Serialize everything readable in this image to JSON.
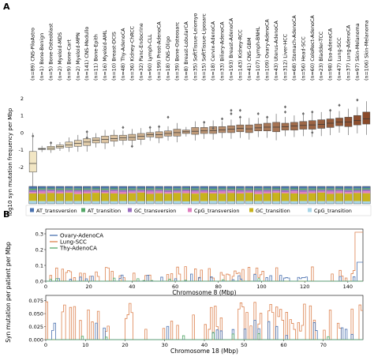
{
  "panel_labels": {
    "a": "A",
    "b": "B"
  },
  "colors": {
    "box_light": "#f2e6c4",
    "box_dark": "#8a4a2a",
    "AT_transversion": "#4a72b0",
    "AT_transition": "#55a868",
    "GC_transversion": "#9b6fc2",
    "CpG_transversion": "#e07fc0",
    "GC_transition": "#c8b31c",
    "CpG_transition": "#a9d6e8",
    "ovary": "#4c72b0",
    "lung": "#dd8452",
    "thy": "#55a868"
  },
  "chart_data": [
    {
      "type": "box",
      "ylabel": "log10 syn mutation frequency per Mbp",
      "ylim": [
        -2.4,
        2.3
      ],
      "yticks": [
        "-2",
        "-1",
        "0",
        "1",
        "2"
      ],
      "categories": [
        "(n=89) CNS-PiloAstro",
        "(n=1) Bone-Benign",
        "(n=5) Bone-Osteoblast",
        "(n=2) Myeloid-MDS",
        "(n=9) Bone-Cart",
        "(n=2) Myeloid-MPN",
        "(n=141) CNS-Medullo",
        "(n=11) Bone-Epith",
        "(n=16) Myeloid-AML",
        "(n=10) Breast-DCIS",
        "(n=48) Thy-AdenoCA",
        "(n=36) Kidney-ChRCC",
        "(n=32) Panc-Endocrine",
        "(n=90) Lymph-CLL",
        "(n=199) Prost-AdenoCA",
        "(n=18) CNS-Oligo",
        "(n=39) Bone-Osteosarc",
        "(n=8) Breast-LobularCA",
        "(n=35) SoftTissue-Leiomyo",
        "(n=15) SoftTissue-Liposarc",
        "(n=18) Cervix-AdenoCA",
        "(n=33) Biliary-AdenoCA",
        "(n=193) Breast-AdenoCA",
        "(n=143) Kidney-RCC",
        "(n=41) CNS-GBM",
        "(n=107) Lymph-BNHL",
        "(n=109) Ovary-AdenoCA",
        "(n=43) Uterus-AdenoCA",
        "(n=312) Liver-HCC",
        "(n=68) Stomach-AdenoCA",
        "(n=56) Head-SCC",
        "(n=60) ColoRect-AdenoCA",
        "(n=23) Bladder-TCC",
        "(n=98) Eso-AdenoCA",
        "(n=47) Lung-SCC",
        "(n=37) Lung-AdenoCA",
        "(n=97) Skin-Melanoma",
        "(n=106) Skin-Melanoma"
      ],
      "medians": [
        -1.8,
        -0.95,
        -0.9,
        -0.82,
        -0.72,
        -0.62,
        -0.55,
        -0.45,
        -0.4,
        -0.35,
        -0.3,
        -0.28,
        -0.22,
        -0.12,
        -0.12,
        -0.05,
        0.0,
        0.05,
        0.08,
        0.1,
        0.12,
        0.15,
        0.2,
        0.25,
        0.22,
        0.28,
        0.32,
        0.32,
        0.35,
        0.38,
        0.42,
        0.45,
        0.48,
        0.55,
        0.62,
        0.62,
        0.7,
        0.8
      ],
      "q1": [
        -2.3,
        -0.98,
        -1.0,
        -0.9,
        -0.85,
        -0.8,
        -0.75,
        -0.6,
        -0.6,
        -0.5,
        -0.45,
        -0.45,
        -0.4,
        -0.25,
        -0.3,
        -0.2,
        -0.2,
        -0.05,
        -0.1,
        -0.05,
        -0.05,
        0.0,
        0.0,
        0.05,
        0.0,
        0.1,
        0.1,
        0.05,
        0.15,
        0.15,
        0.2,
        0.2,
        0.25,
        0.3,
        0.4,
        0.35,
        0.45,
        0.5
      ],
      "q3": [
        -1.1,
        -0.92,
        -0.8,
        -0.72,
        -0.55,
        -0.45,
        -0.35,
        -0.3,
        -0.2,
        -0.15,
        -0.15,
        -0.1,
        -0.05,
        0.0,
        0.05,
        0.1,
        0.2,
        0.15,
        0.3,
        0.3,
        0.35,
        0.35,
        0.4,
        0.45,
        0.45,
        0.5,
        0.55,
        0.6,
        0.55,
        0.6,
        0.65,
        0.7,
        0.75,
        0.8,
        0.85,
        0.9,
        1.0,
        1.2
      ],
      "outliers": [
        [
          -0.2
        ],
        [],
        [
          -0.6
        ],
        [],
        [],
        [],
        [
          -0.3,
          0.05
        ],
        [],
        [],
        [],
        [
          0.3
        ],
        [
          -0.8
        ],
        [],
        [
          0.3
        ],
        [
          0.35
        ],
        [
          0.9
        ],
        [],
        [],
        [],
        [
          0.6
        ],
        [
          0.25
        ],
        [
          0.8
        ],
        [
          1.1,
          1.3
        ],
        [
          1.3,
          0.9
        ],
        [],
        [
          1.1
        ],
        [
          0.9
        ],
        [],
        [
          1.5,
          1.2
        ],
        [],
        [
          1.1
        ],
        [
          1.2,
          0.0
        ],
        [],
        [
          1.3
        ],
        [
          1.6
        ],
        [],
        [
          1.9
        ],
        []
      ],
      "legend": [
        "AT_transversion",
        "AT_transition",
        "GC_transversion",
        "CpG_transversion",
        "GC_transition",
        "CpG_transition"
      ]
    },
    {
      "type": "line",
      "xlabel": "Chromosome 8 (Mbp)",
      "xlim": [
        0,
        147
      ],
      "xticks": [
        "0",
        "20",
        "40",
        "60",
        "80",
        "100",
        "120",
        "140"
      ],
      "ylim": [
        0,
        0.33
      ],
      "yticks": [
        "0.0",
        "0.1",
        "0.2",
        "0.3"
      ],
      "series": [
        {
          "name": "Ovary-AdenoCA",
          "color": "#4c72b0"
        },
        {
          "name": "Lung-SCC",
          "color": "#dd8452"
        },
        {
          "name": "Thy-AdenoCA",
          "color": "#55a868"
        }
      ]
    },
    {
      "type": "line",
      "xlabel": "Chromosome 18 (Mbp)",
      "xlim": [
        0,
        80
      ],
      "xticks": [
        "0",
        "10",
        "20",
        "30",
        "40",
        "50",
        "60",
        "70"
      ],
      "ylim": [
        0,
        0.085
      ],
      "yticks": [
        "0.000",
        "0.025",
        "0.050",
        "0.075"
      ]
    }
  ],
  "shared_ylabel_b": "Syn mutation per patient per Mbp"
}
